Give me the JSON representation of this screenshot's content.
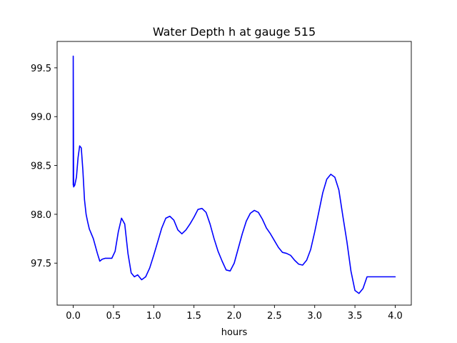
{
  "chart_data": {
    "type": "line",
    "title": "Water Depth h at gauge 515",
    "xlabel": "hours",
    "ylabel": "",
    "xlim": [
      -0.2,
      4.2
    ],
    "ylim": [
      97.07,
      99.77
    ],
    "xticks": [
      0.0,
      0.5,
      1.0,
      1.5,
      2.0,
      2.5,
      3.0,
      3.5,
      4.0
    ],
    "xtick_labels": [
      "0.0",
      "0.5",
      "1.0",
      "1.5",
      "2.0",
      "2.5",
      "3.0",
      "3.5",
      "4.0"
    ],
    "yticks": [
      97.5,
      98.0,
      98.5,
      99.0,
      99.5
    ],
    "ytick_labels": [
      "97.5",
      "98.0",
      "98.5",
      "99.0",
      "99.5"
    ],
    "grid": false,
    "series": [
      {
        "color": "#0000ff",
        "x": [
          0.0,
          0.0,
          0.005,
          0.02,
          0.04,
          0.06,
          0.08,
          0.1,
          0.12,
          0.14,
          0.16,
          0.18,
          0.2,
          0.25,
          0.3,
          0.33,
          0.36,
          0.4,
          0.44,
          0.48,
          0.52,
          0.56,
          0.6,
          0.64,
          0.68,
          0.72,
          0.76,
          0.8,
          0.85,
          0.9,
          0.95,
          1.0,
          1.05,
          1.1,
          1.15,
          1.2,
          1.25,
          1.3,
          1.35,
          1.4,
          1.45,
          1.5,
          1.55,
          1.6,
          1.65,
          1.7,
          1.75,
          1.8,
          1.85,
          1.9,
          1.95,
          2.0,
          2.05,
          2.1,
          2.15,
          2.2,
          2.25,
          2.3,
          2.35,
          2.4,
          2.45,
          2.5,
          2.55,
          2.6,
          2.65,
          2.7,
          2.75,
          2.8,
          2.85,
          2.9,
          2.95,
          3.0,
          3.05,
          3.1,
          3.15,
          3.2,
          3.25,
          3.3,
          3.35,
          3.4,
          3.45,
          3.5,
          3.55,
          3.6,
          3.65,
          3.7,
          3.75,
          3.8,
          3.85,
          3.9,
          3.95,
          4.0
        ],
        "y": [
          98.3,
          99.62,
          98.28,
          98.3,
          98.38,
          98.58,
          98.7,
          98.68,
          98.45,
          98.15,
          98.0,
          97.92,
          97.85,
          97.75,
          97.6,
          97.52,
          97.54,
          97.55,
          97.55,
          97.55,
          97.62,
          97.82,
          97.96,
          97.9,
          97.6,
          97.4,
          97.36,
          97.38,
          97.33,
          97.36,
          97.45,
          97.58,
          97.72,
          97.86,
          97.96,
          97.98,
          97.94,
          97.84,
          97.8,
          97.84,
          97.9,
          97.97,
          98.05,
          98.06,
          98.02,
          97.9,
          97.75,
          97.62,
          97.52,
          97.43,
          97.42,
          97.5,
          97.65,
          97.8,
          97.93,
          98.01,
          98.04,
          98.02,
          97.95,
          97.86,
          97.8,
          97.73,
          97.66,
          97.61,
          97.6,
          97.58,
          97.53,
          97.49,
          97.48,
          97.53,
          97.64,
          97.82,
          98.02,
          98.22,
          98.36,
          98.41,
          98.38,
          98.25,
          97.98,
          97.72,
          97.42,
          97.22,
          97.19,
          97.24,
          97.36,
          97.36,
          97.36,
          97.36,
          97.36,
          97.36,
          97.36,
          97.36
        ]
      }
    ]
  }
}
